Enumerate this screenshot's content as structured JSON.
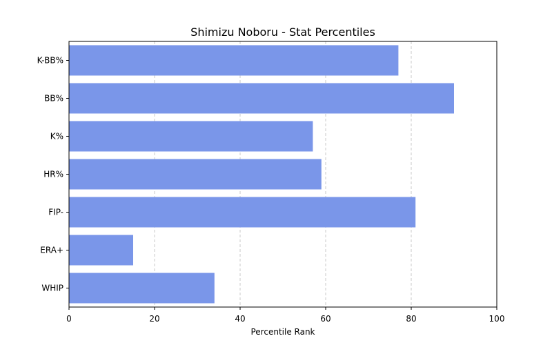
{
  "colors": {
    "bar": "#7a96e9",
    "grid": "#c8c8c8",
    "axis": "#000000"
  },
  "chart_data": {
    "type": "bar",
    "orientation": "horizontal",
    "title": "Shimizu Noboru - Stat Percentiles",
    "xlabel": "Percentile Rank",
    "ylabel": "",
    "categories": [
      "K-BB%",
      "BB%",
      "K%",
      "HR%",
      "FIP-",
      "ERA+",
      "WHIP"
    ],
    "values": [
      77,
      90,
      57,
      59,
      81,
      15,
      34
    ],
    "xlim": [
      0,
      100
    ],
    "xticks": [
      0,
      20,
      40,
      60,
      80,
      100
    ],
    "grid": "x-axis dashed"
  }
}
